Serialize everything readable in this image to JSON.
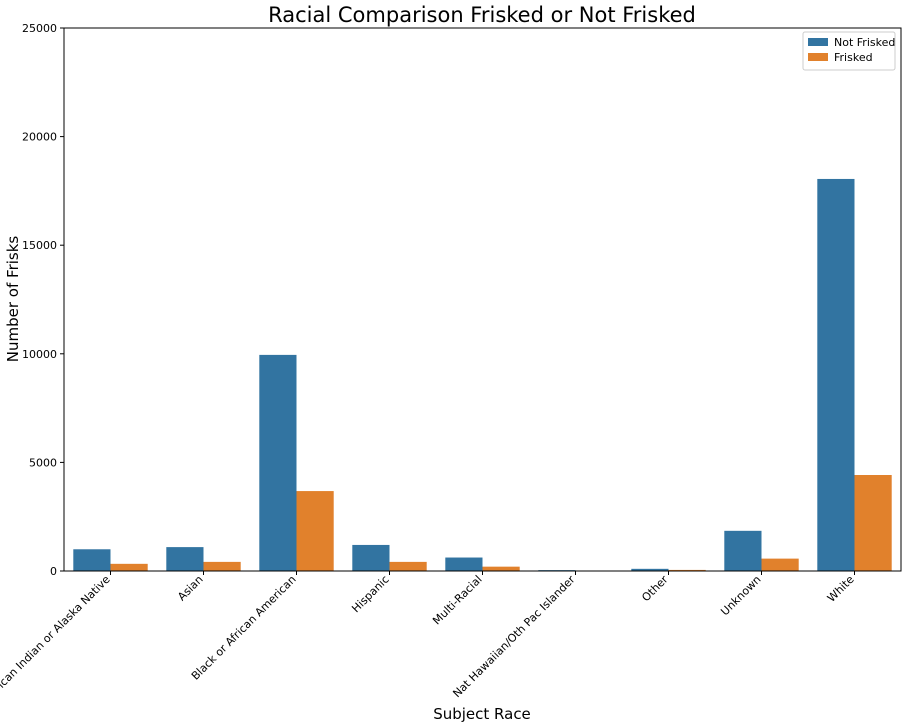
{
  "chart_data": {
    "type": "bar",
    "title": "Racial Comparison Frisked or Not Frisked",
    "xlabel": "Subject Race",
    "ylabel": "Number of Frisks",
    "ylim": [
      0,
      25000
    ],
    "yticks": [
      0,
      5000,
      10000,
      15000,
      20000,
      25000
    ],
    "categories": [
      "American Indian or Alaska Native",
      "Asian",
      "Black or African American",
      "Hispanic",
      "Multi-Racial",
      "Nat Hawaiian/Oth Pac Islander",
      "Other",
      "Unknown",
      "White"
    ],
    "series": [
      {
        "name": "Not Frisked",
        "color": "#3274a1",
        "values": [
          1000,
          1100,
          9950,
          1200,
          620,
          40,
          100,
          1850,
          18050
        ]
      },
      {
        "name": "Frisked",
        "color": "#e1812c",
        "values": [
          330,
          420,
          3680,
          420,
          200,
          10,
          50,
          570,
          4420
        ]
      }
    ],
    "legend_position": "top-right",
    "grid": false
  }
}
